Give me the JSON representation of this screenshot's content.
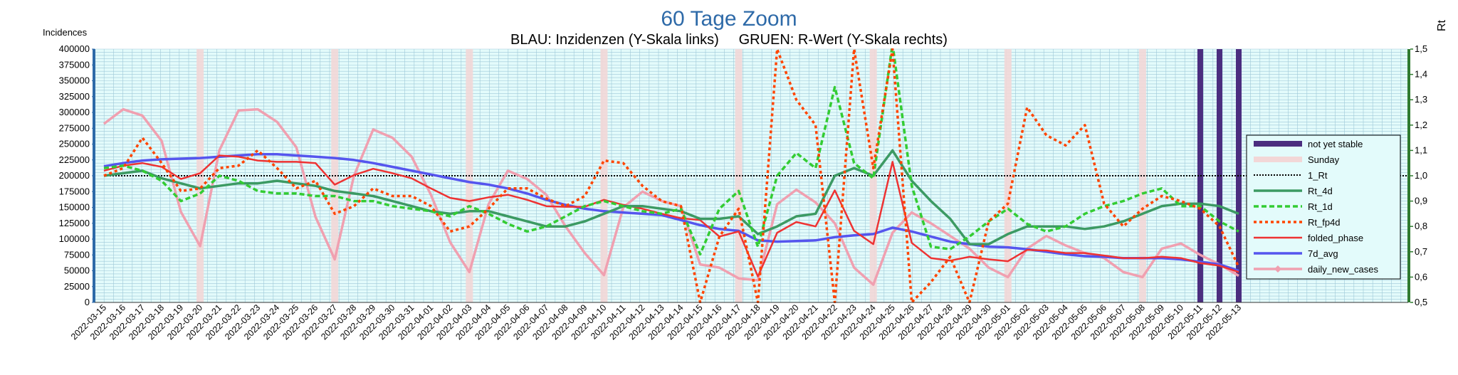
{
  "chart_data": {
    "type": "line",
    "title": "60 Tage Zoom",
    "subtitle": "BLAU: Inzidenzen (Y-Skala links)     GRUEN: R-Wert (Y-Skala rechts)",
    "ylabel_left": "Incidences",
    "ylabel_right": "Rt",
    "left_ylim": [
      0,
      400000
    ],
    "left_ticks": [
      "0",
      "25000",
      "50000",
      "75000",
      "100000",
      "125000",
      "150000",
      "175000",
      "200000",
      "225000",
      "250000",
      "275000",
      "300000",
      "325000",
      "350000",
      "375000",
      "400000"
    ],
    "right_ylim": [
      0.5,
      1.5
    ],
    "right_ticks": [
      "0,5",
      "0,6",
      "0,7",
      "0,8",
      "0,9",
      "1,0",
      "1,1",
      "1,2",
      "1,3",
      "1,4",
      "1,5"
    ],
    "grid": true,
    "legend_position": "right",
    "x": [
      "2022-03-15",
      "2022-03-16",
      "2022-03-17",
      "2022-03-18",
      "2022-03-19",
      "2022-03-20",
      "2022-03-21",
      "2022-03-22",
      "2022-03-23",
      "2022-03-24",
      "2022-03-25",
      "2022-03-26",
      "2022-03-27",
      "2022-03-28",
      "2022-03-29",
      "2022-03-30",
      "2022-03-31",
      "2022-04-01",
      "2022-04-02",
      "2022-04-03",
      "2022-04-04",
      "2022-04-05",
      "2022-04-06",
      "2022-04-07",
      "2022-04-08",
      "2022-04-09",
      "2022-04-10",
      "2022-04-11",
      "2022-04-12",
      "2022-04-13",
      "2022-04-14",
      "2022-04-15",
      "2022-04-16",
      "2022-04-17",
      "2022-04-18",
      "2022-04-19",
      "2022-04-20",
      "2022-04-21",
      "2022-04-22",
      "2022-04-23",
      "2022-04-24",
      "2022-04-25",
      "2022-04-26",
      "2022-04-27",
      "2022-04-28",
      "2022-04-29",
      "2022-04-30",
      "2022-05-01",
      "2022-05-02",
      "2022-05-03",
      "2022-05-04",
      "2022-05-05",
      "2022-05-06",
      "2022-05-07",
      "2022-05-08",
      "2022-05-09",
      "2022-05-10",
      "2022-05-11",
      "2022-05-12",
      "2022-05-13"
    ],
    "sundays": [
      "2022-03-20",
      "2022-03-27",
      "2022-04-03",
      "2022-04-10",
      "2022-04-17",
      "2022-04-24",
      "2022-05-01",
      "2022-05-08"
    ],
    "not_yet_stable": [
      "2022-05-11",
      "2022-05-12",
      "2022-05-13"
    ],
    "reference_line": {
      "name": "1_Rt",
      "value": 1.0
    },
    "series": [
      {
        "name": "not yet stable",
        "axis": "none",
        "color": "#4b2d7f",
        "style": "bar"
      },
      {
        "name": "Sunday",
        "axis": "none",
        "color": "#f2d7d7",
        "style": "bar"
      },
      {
        "name": "1_Rt",
        "axis": "right",
        "color": "#000000",
        "style": "dotted"
      },
      {
        "name": "Rt_4d",
        "axis": "right",
        "color": "#3c9a63",
        "style": "solid",
        "values": [
          1.0,
          1.01,
          1.02,
          0.99,
          0.97,
          0.95,
          0.96,
          0.97,
          0.97,
          0.98,
          0.97,
          0.96,
          0.94,
          0.93,
          0.92,
          0.9,
          0.88,
          0.86,
          0.85,
          0.86,
          0.86,
          0.84,
          0.82,
          0.8,
          0.8,
          0.82,
          0.85,
          0.88,
          0.88,
          0.87,
          0.86,
          0.83,
          0.83,
          0.84,
          0.77,
          0.8,
          0.84,
          0.85,
          1.0,
          1.03,
          1.0,
          1.1,
          0.98,
          0.9,
          0.83,
          0.73,
          0.73,
          0.77,
          0.8,
          0.8,
          0.8,
          0.79,
          0.8,
          0.82,
          0.85,
          0.88,
          0.89,
          0.89,
          0.88,
          0.85
        ]
      },
      {
        "name": "Rt_1d",
        "axis": "right",
        "color": "#33cc33",
        "style": "dashed",
        "values": [
          1.03,
          1.04,
          1.02,
          0.98,
          0.9,
          0.93,
          1.0,
          0.98,
          0.94,
          0.93,
          0.93,
          0.92,
          0.92,
          0.9,
          0.9,
          0.88,
          0.87,
          0.86,
          0.84,
          0.88,
          0.85,
          0.81,
          0.78,
          0.8,
          0.84,
          0.88,
          0.9,
          0.88,
          0.86,
          0.85,
          0.87,
          0.69,
          0.87,
          0.94,
          0.72,
          1.0,
          1.09,
          1.03,
          1.35,
          1.05,
          0.99,
          1.52,
          0.96,
          0.72,
          0.71,
          0.76,
          0.82,
          0.87,
          0.81,
          0.78,
          0.8,
          0.85,
          0.88,
          0.9,
          0.93,
          0.95,
          0.88,
          0.88,
          0.82,
          0.78
        ]
      },
      {
        "name": "Rt_fp4d",
        "axis": "right",
        "color": "#ff4500",
        "style": "dotted",
        "values": [
          1.0,
          1.03,
          1.15,
          1.05,
          0.94,
          0.95,
          1.03,
          1.04,
          1.1,
          1.03,
          0.95,
          0.98,
          0.85,
          0.88,
          0.95,
          0.92,
          0.92,
          0.88,
          0.78,
          0.8,
          0.87,
          0.95,
          0.95,
          0.91,
          0.88,
          0.92,
          1.06,
          1.05,
          0.96,
          0.9,
          0.88,
          0.5,
          0.76,
          0.87,
          0.5,
          1.5,
          1.3,
          1.2,
          0.5,
          1.5,
          1.03,
          1.5,
          0.5,
          0.58,
          0.68,
          0.5,
          0.82,
          0.89,
          1.27,
          1.16,
          1.12,
          1.2,
          0.89,
          0.8,
          0.87,
          0.92,
          0.9,
          0.87,
          0.8,
          0.64
        ]
      },
      {
        "name": "folded_phase",
        "axis": "left",
        "color": "#ee3333",
        "style": "solid",
        "values": [
          208000,
          216000,
          220000,
          214000,
          195000,
          204000,
          232000,
          230000,
          224000,
          222000,
          222000,
          220000,
          186000,
          201000,
          211000,
          204000,
          196000,
          180000,
          165000,
          160000,
          166000,
          170000,
          162000,
          152000,
          151000,
          151000,
          162000,
          154000,
          148000,
          140000,
          133000,
          130000,
          104000,
          112000,
          41000,
          110000,
          127000,
          120000,
          177000,
          113000,
          92000,
          222000,
          94000,
          70000,
          66000,
          72000,
          68000,
          65000,
          83000,
          82000,
          78000,
          78000,
          74000,
          70000,
          70000,
          72000,
          70000,
          62000,
          58000,
          48000
        ]
      },
      {
        "name": "7d_avg",
        "axis": "left",
        "color": "#5555ee",
        "style": "solid",
        "values": [
          215000,
          220000,
          224000,
          226000,
          227000,
          228000,
          230000,
          232000,
          234000,
          234000,
          232000,
          230000,
          228000,
          225000,
          220000,
          214000,
          208000,
          202000,
          196000,
          190000,
          186000,
          180000,
          172000,
          162000,
          154000,
          148000,
          144000,
          142000,
          140000,
          138000,
          130000,
          122000,
          116000,
          113000,
          98000,
          96000,
          97000,
          98000,
          103000,
          106000,
          108000,
          118000,
          112000,
          104000,
          96000,
          92000,
          88000,
          87000,
          84000,
          80000,
          76000,
          73000,
          72000,
          70000,
          70000,
          70000,
          68000,
          64000,
          60000,
          50000
        ]
      },
      {
        "name": "daily_new_cases",
        "axis": "left",
        "color": "#f0a0b0",
        "style": "marker",
        "values": [
          282000,
          305000,
          295000,
          255000,
          143000,
          89000,
          240000,
          303000,
          305000,
          285000,
          245000,
          135000,
          68000,
          200000,
          273000,
          260000,
          230000,
          170000,
          95000,
          48000,
          155000,
          208000,
          195000,
          170000,
          120000,
          78000,
          43000,
          150000,
          175000,
          160000,
          152000,
          60000,
          55000,
          38000,
          35000,
          155000,
          178000,
          158000,
          125000,
          55000,
          28000,
          110000,
          142000,
          125000,
          105000,
          85000,
          55000,
          40000,
          85000,
          105000,
          90000,
          78000,
          70000,
          48000,
          40000,
          85000,
          93000,
          75000,
          60000,
          42000
        ]
      }
    ]
  }
}
